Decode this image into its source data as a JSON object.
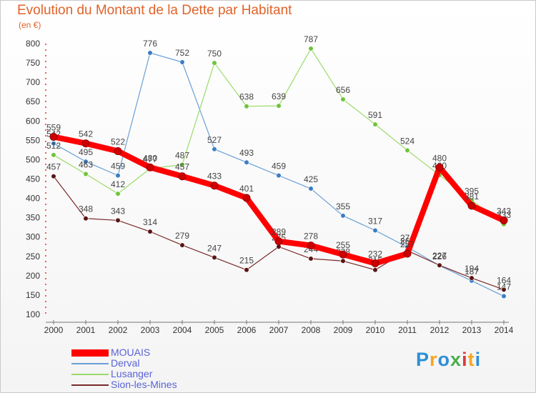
{
  "title": "Evolution du Montant de la Dette par Habitant",
  "subtitle": "(en €)",
  "brand": {
    "letters": [
      "P",
      "r",
      "o",
      "x",
      "i",
      "t",
      "i"
    ],
    "colors": [
      "#2c8fd6",
      "#f5a623",
      "#2c8fd6",
      "#4cae4c",
      "#d93a3a",
      "#f5a623",
      "#2c8fd6"
    ]
  },
  "chart_data": {
    "type": "line",
    "x": [
      2000,
      2001,
      2002,
      2003,
      2004,
      2005,
      2006,
      2007,
      2008,
      2009,
      2010,
      2011,
      2012,
      2013,
      2014
    ],
    "ylim": [
      100,
      800
    ],
    "yticks": [
      100,
      150,
      200,
      250,
      300,
      350,
      400,
      450,
      500,
      550,
      600,
      650,
      700,
      750,
      800
    ],
    "grid": false,
    "legend_position": "bottom-left",
    "series": [
      {
        "name": "MOUAIS",
        "color": "#ff0000",
        "marker": "#cc0000",
        "values": [
          559,
          542,
          522,
          480,
          457,
          433,
          401,
          289,
          278,
          255,
          232,
          257,
          480,
          381,
          343
        ],
        "labels": [
          "559",
          "542",
          "522",
          "480",
          "457",
          "433",
          "401",
          "289",
          "278",
          "255",
          "232",
          "257",
          "480",
          "381",
          "343"
        ]
      },
      {
        "name": "Derval",
        "color": "#6a9fd6",
        "marker": "#3a7ec4",
        "values": [
          542,
          495,
          459,
          776,
          752,
          527,
          493,
          459,
          425,
          355,
          317,
          274,
          226,
          187,
          147
        ],
        "labels": [
          "542",
          "495",
          "459",
          "776",
          "752",
          "527",
          "493",
          "459",
          "425",
          "355",
          "317",
          "274",
          "226",
          "187",
          "147"
        ]
      },
      {
        "name": "Lusanger",
        "color": "#9bdb6a",
        "marker": "#6fc43a",
        "values": [
          512,
          463,
          412,
          477,
          487,
          750,
          638,
          639,
          787,
          656,
          591,
          524,
          460,
          395,
          333
        ],
        "labels": [
          "512",
          "463",
          "412",
          "477",
          "487",
          "750",
          "638",
          "639",
          "787",
          "656",
          "591",
          "524",
          "460",
          "395",
          "333"
        ]
      },
      {
        "name": "Sion-les-Mines",
        "color": "#7a2a2a",
        "marker": "#5a1515",
        "values": [
          457,
          348,
          343,
          314,
          279,
          247,
          215,
          275,
          244,
          238,
          215,
          265,
          227,
          194,
          164
        ],
        "labels": [
          "457",
          "348",
          "343",
          "314",
          "279",
          "247",
          "215",
          "275",
          "244",
          "238",
          "215",
          "265",
          "227",
          "194",
          "164"
        ]
      }
    ]
  }
}
